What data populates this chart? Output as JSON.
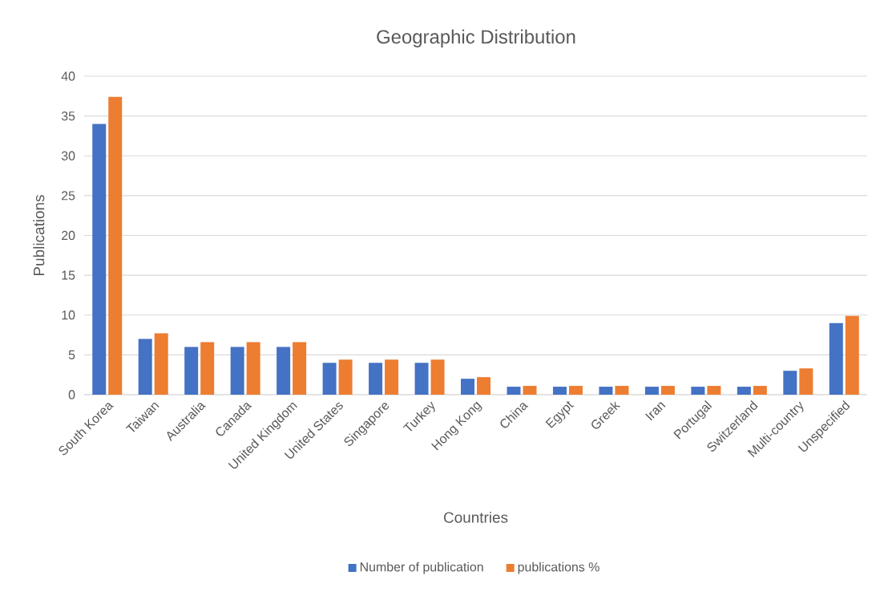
{
  "chart_data": {
    "type": "bar",
    "title": "Geographic Distribution",
    "xlabel": "Countries",
    "ylabel": "Publications",
    "categories": [
      "South Korea",
      "Taiwan",
      "Australia",
      "Canada",
      "United Kingdom",
      "United States",
      "Singapore",
      "Turkey",
      "Hong Kong",
      "China",
      "Egypt",
      "Greek",
      "Iran",
      "Portugal",
      "Switzerland",
      "Multi-country",
      "Unspecified"
    ],
    "series": [
      {
        "name": "Number of publication",
        "color": "#4472c4",
        "values": [
          34,
          7,
          6,
          6,
          6,
          4,
          4,
          4,
          2,
          1,
          1,
          1,
          1,
          1,
          1,
          3,
          9
        ]
      },
      {
        "name": "publications %",
        "color": "#ed7d31",
        "values": [
          37.4,
          7.7,
          6.6,
          6.6,
          6.6,
          4.4,
          4.4,
          4.4,
          2.2,
          1.1,
          1.1,
          1.1,
          1.1,
          1.1,
          1.1,
          3.3,
          9.9
        ]
      }
    ],
    "ylim": [
      0,
      40
    ],
    "yticks": [
      0,
      5,
      10,
      15,
      20,
      25,
      30,
      35,
      40
    ],
    "grid": "y",
    "legend": "bottom"
  }
}
